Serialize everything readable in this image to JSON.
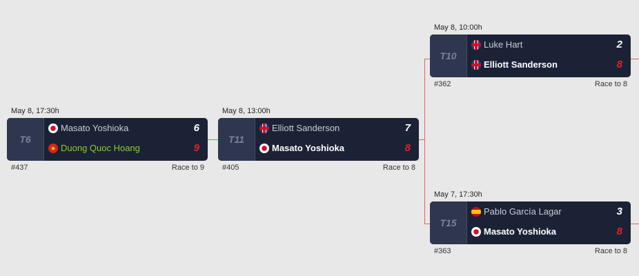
{
  "matches": [
    {
      "date": "May 8, 17:30h",
      "table": "T6",
      "id": "#437",
      "race": "Race to 9",
      "players": [
        {
          "name": "Masato Yoshioka",
          "flag": "jp",
          "score": "6"
        },
        {
          "name": "Duong Quoc Hoang",
          "flag": "vn",
          "score": "9"
        }
      ]
    },
    {
      "date": "May 8, 13:00h",
      "table": "T11",
      "id": "#405",
      "race": "Race to 8",
      "players": [
        {
          "name": "Elliott Sanderson",
          "flag": "gb",
          "score": "7"
        },
        {
          "name": "Masato Yoshioka",
          "flag": "jp",
          "score": "8"
        }
      ]
    },
    {
      "date": "May 8, 10:00h",
      "table": "T10",
      "id": "#362",
      "race": "Race to 8",
      "players": [
        {
          "name": "Luke Hart",
          "flag": "gb",
          "score": "2"
        },
        {
          "name": "Elliott Sanderson",
          "flag": "gb",
          "score": "8"
        }
      ]
    },
    {
      "date": "May 7, 17:30h",
      "table": "T15",
      "id": "#363",
      "race": "Race to 8",
      "players": [
        {
          "name": "Pablo García Lagar",
          "flag": "es",
          "score": "3"
        },
        {
          "name": "Masato Yoshioka",
          "flag": "jp",
          "score": "8"
        }
      ]
    }
  ],
  "colors": {
    "winner_score": "#e0202c",
    "highlight_player": "#8fce1e",
    "connector": "#d9655c",
    "card": "#1b2236"
  }
}
